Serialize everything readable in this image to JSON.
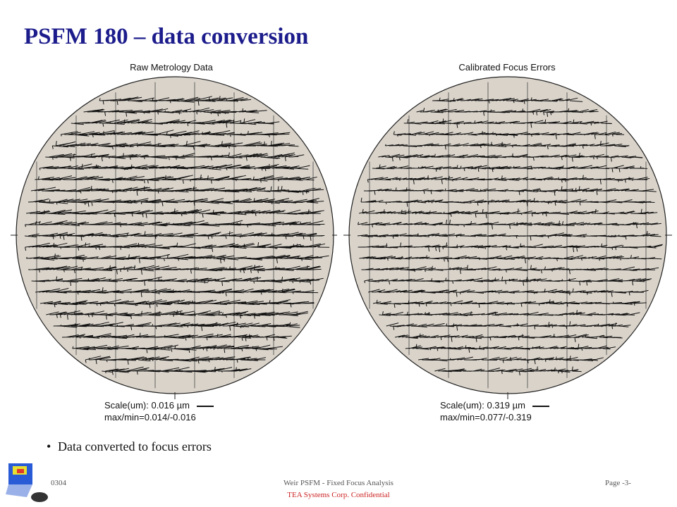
{
  "slide": {
    "title": "PSFM 180 – data conversion",
    "bullet": "Data converted to focus errors"
  },
  "wafers": [
    {
      "title": "Raw Metrology Data",
      "scale": "Scale(um): 0.016 µm",
      "maxmin": "max/min=0.014/-0.016"
    },
    {
      "title": "Calibrated Focus Errors",
      "scale": "Scale(um): 0.319 µm",
      "maxmin": "max/min=0.077/-0.319"
    }
  ],
  "footer": {
    "left": "0304",
    "center": "Weir PSFM - Fixed Focus Analysis",
    "right": "Page -3-",
    "confidential": "TEA Systems Corp. Confidential"
  },
  "colors": {
    "title": "#1c1c8c",
    "wafer_fill": "#d9d3ca",
    "vector": "#111111",
    "confidential": "#cc2222"
  }
}
